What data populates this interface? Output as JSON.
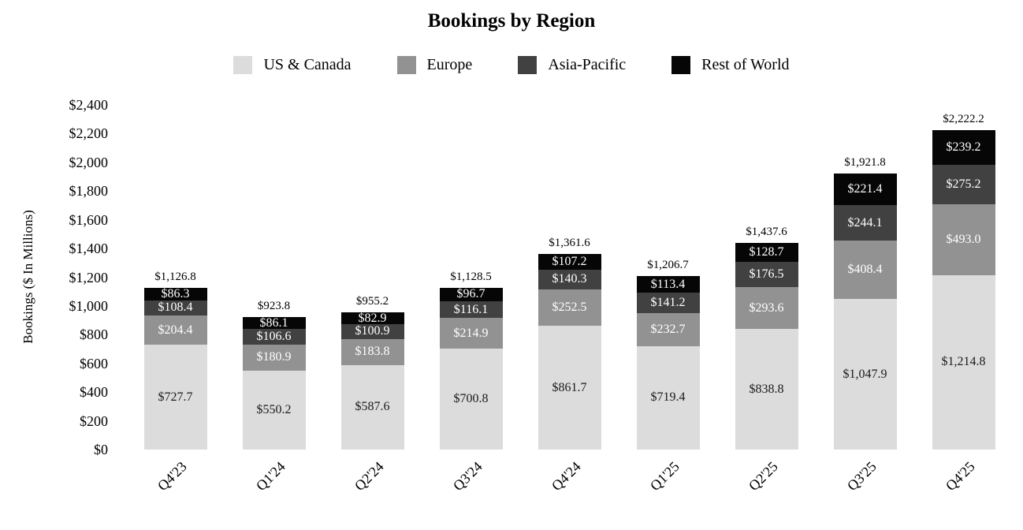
{
  "title": "Bookings by Region",
  "y_axis": {
    "label": "Bookings ($ In Millions)",
    "min": 0,
    "max": 2400,
    "step": 200,
    "tick_format": "$#,##0"
  },
  "legend": [
    "US & Canada",
    "Europe",
    "Asia-Pacific",
    "Rest of World"
  ],
  "chart_data": {
    "type": "bar",
    "stacked": true,
    "grid": false,
    "legend_position": "top",
    "categories": [
      "Q4'23",
      "Q1'24",
      "Q2'24",
      "Q3'24",
      "Q4'24",
      "Q1'25",
      "Q2'25",
      "Q3'25",
      "Q4'25"
    ],
    "series": [
      {
        "name": "US & Canada",
        "color": "#dcdcdc",
        "label_color": "#1a1a1a",
        "values": [
          727.7,
          550.2,
          587.6,
          700.8,
          861.7,
          719.4,
          838.8,
          1047.9,
          1214.8
        ]
      },
      {
        "name": "Europe",
        "color": "#929292",
        "label_color": "#ffffff",
        "values": [
          204.4,
          180.9,
          183.8,
          214.9,
          252.5,
          232.7,
          293.6,
          408.4,
          493.0
        ]
      },
      {
        "name": "Asia-Pacific",
        "color": "#414141",
        "label_color": "#ffffff",
        "values": [
          108.4,
          106.6,
          100.9,
          116.1,
          140.3,
          141.2,
          176.5,
          244.1,
          275.2
        ]
      },
      {
        "name": "Rest of World",
        "color": "#060606",
        "label_color": "#ffffff",
        "values": [
          86.3,
          86.1,
          82.9,
          96.7,
          107.2,
          113.4,
          128.7,
          221.4,
          239.2
        ]
      }
    ],
    "totals": [
      1126.8,
      923.8,
      955.2,
      1128.5,
      1361.6,
      1206.7,
      1437.6,
      1921.8,
      2222.2
    ],
    "title": "Bookings by Region",
    "xlabel": "",
    "ylabel": "Bookings ($ In Millions)",
    "ylim": [
      0,
      2400
    ]
  }
}
